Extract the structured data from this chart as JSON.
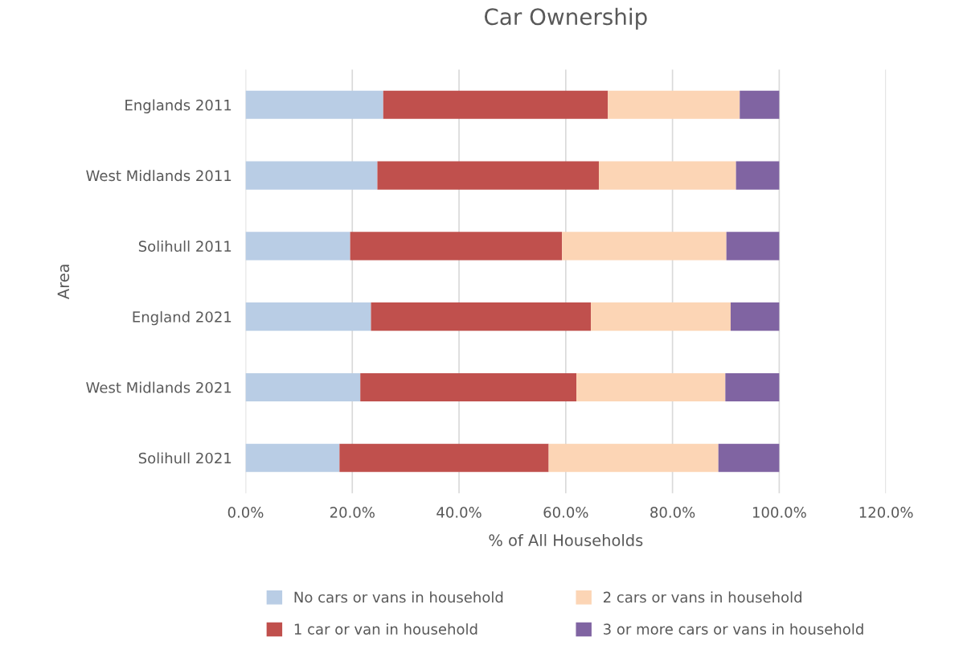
{
  "chart_data": {
    "type": "bar",
    "orientation": "horizontal",
    "stacked": true,
    "title": "Car Ownership",
    "xlabel": "% of All Households",
    "ylabel": "Area",
    "categories": [
      "Englands 2011",
      "West Midlands 2011",
      "Solihull 2011",
      "England 2021",
      "West Midlands 2021",
      "Solihull 2021"
    ],
    "series": [
      {
        "name": "No cars or vans in household",
        "color": "#b9cde5",
        "values": [
          25.8,
          24.7,
          19.6,
          23.5,
          21.5,
          17.6
        ]
      },
      {
        "name": "1 car or van in household",
        "color": "#c0504d",
        "values": [
          42.1,
          41.5,
          39.7,
          41.2,
          40.5,
          39.2
        ]
      },
      {
        "name": "2 cars or vans in household",
        "color": "#fcd5b5",
        "values": [
          24.7,
          25.7,
          30.8,
          26.2,
          27.9,
          31.8
        ]
      },
      {
        "name": "3 or more cars or vans in household",
        "color": "#8064a2",
        "values": [
          7.4,
          8.1,
          9.9,
          9.1,
          10.1,
          11.4
        ]
      }
    ],
    "xlim": [
      0,
      120
    ],
    "xticks": [
      {
        "value": 0,
        "label": "0.0%"
      },
      {
        "value": 20,
        "label": "20.0%"
      },
      {
        "value": 40,
        "label": "40.0%"
      },
      {
        "value": 60,
        "label": "60.0%"
      },
      {
        "value": 80,
        "label": "80.0%"
      },
      {
        "value": 100,
        "label": "100.0%"
      },
      {
        "value": 120,
        "label": "120.0%"
      }
    ],
    "grid": "x",
    "legend": "bottom"
  }
}
